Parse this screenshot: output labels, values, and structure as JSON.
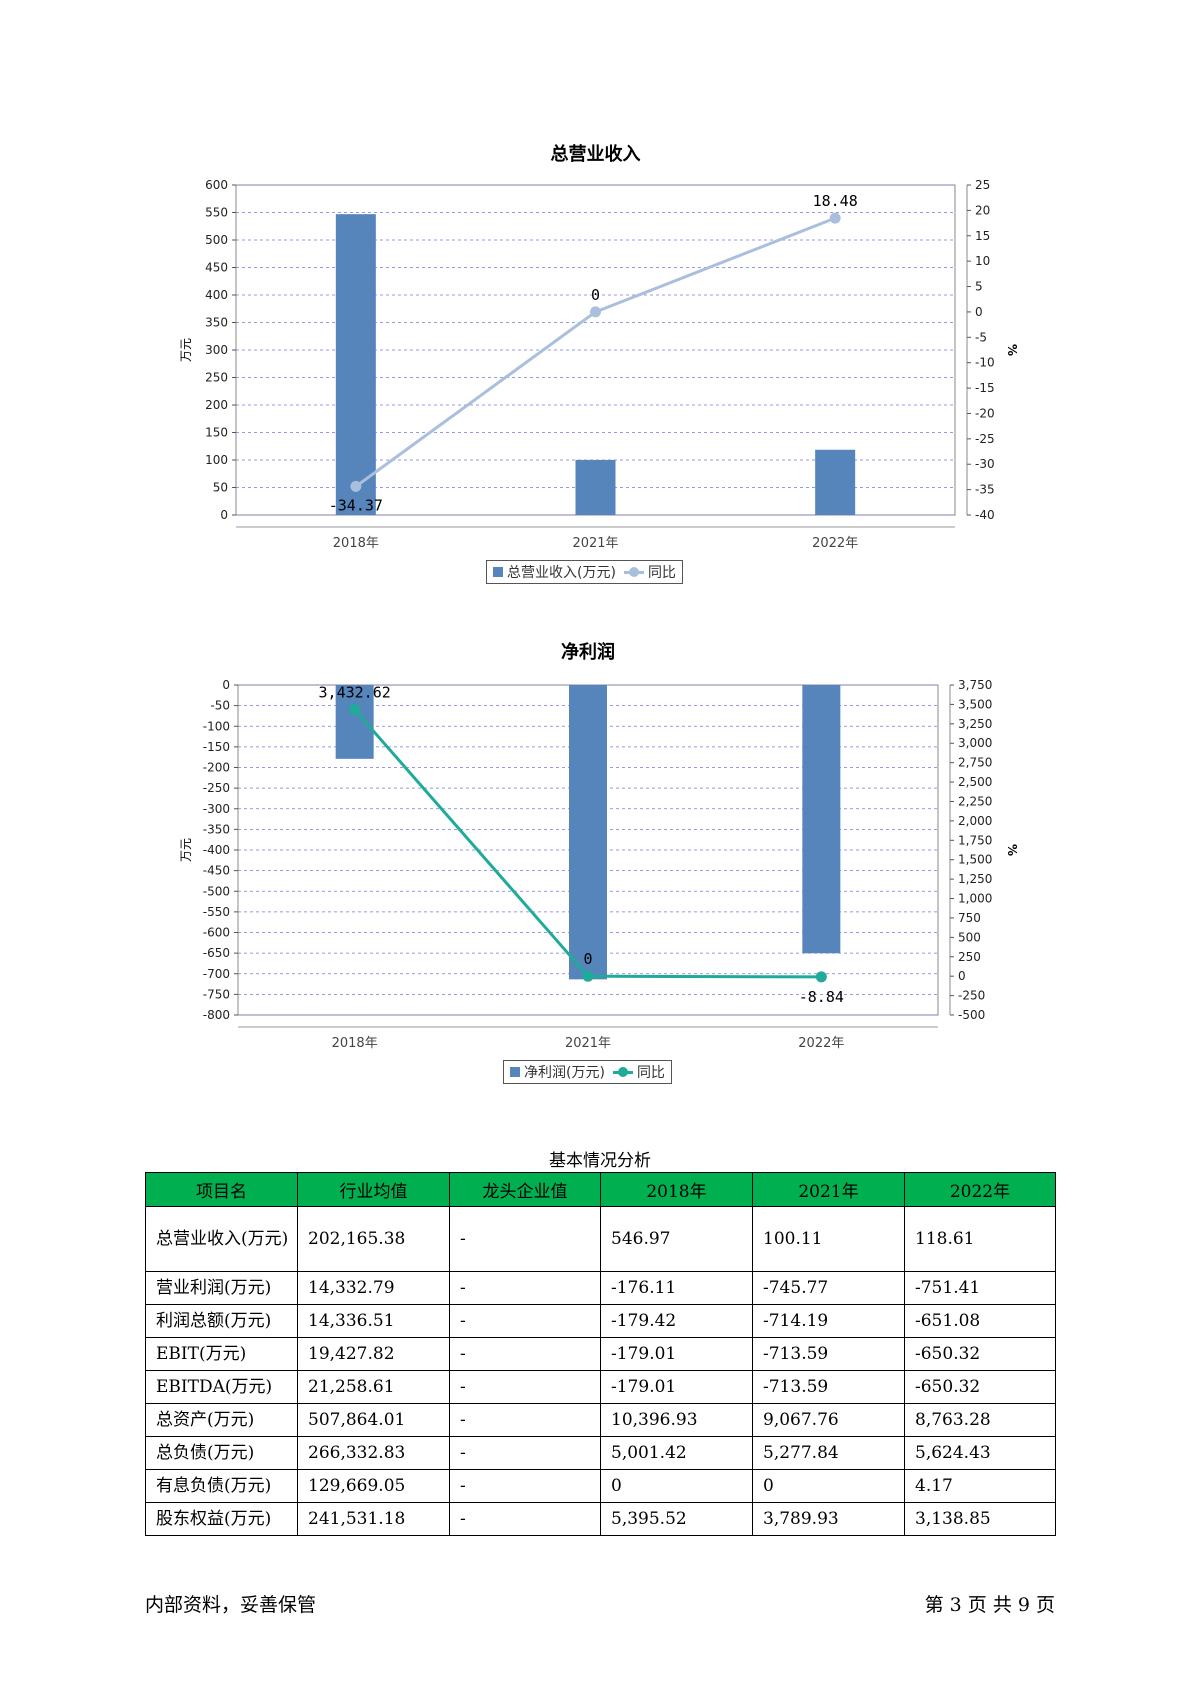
{
  "chart_data": [
    {
      "type": "bar",
      "title": "总营业收入",
      "ylabel": "万元",
      "y2label": "%",
      "categories": [
        "2018年",
        "2021年",
        "2022年"
      ],
      "series": [
        {
          "name": "总营业收入(万元)",
          "type": "bar",
          "axis": "left",
          "values": [
            546.97,
            100.11,
            118.61
          ]
        },
        {
          "name": "同比",
          "type": "line",
          "axis": "right",
          "values": [
            -34.37,
            0,
            18.48
          ]
        }
      ],
      "data_labels": [
        "-34.37",
        "0",
        "18.48"
      ],
      "ylim": [
        0,
        600
      ],
      "y2lim": [
        -40,
        25
      ],
      "grid": true,
      "legend": "bottom-center",
      "colors": {
        "bar": "#5585bb",
        "line": "#aabfdd"
      }
    },
    {
      "type": "bar",
      "title": "净利润",
      "ylabel": "万元",
      "y2label": "%",
      "categories": [
        "2018年",
        "2021年",
        "2022年"
      ],
      "series": [
        {
          "name": "净利润(万元)",
          "type": "bar",
          "axis": "left",
          "values": [
            -179.01,
            -713.59,
            -650.32
          ]
        },
        {
          "name": "同比",
          "type": "line",
          "axis": "right",
          "values": [
            3432.62,
            0,
            -8.84
          ]
        }
      ],
      "data_labels": [
        "3,432.62",
        "0",
        "-8.84"
      ],
      "ylim": [
        -800,
        0
      ],
      "y2lim": [
        -500,
        3750
      ],
      "grid": true,
      "legend": "bottom-center",
      "colors": {
        "bar": "#5585bb",
        "line": "#20aa99"
      }
    }
  ],
  "table": {
    "title": "基本情况分析",
    "headers": [
      "项目名",
      "行业均值",
      "龙头企业值",
      "2018年",
      "2021年",
      "2022年"
    ],
    "rows": [
      [
        "总营业收入(万元)",
        "202,165.38",
        "-",
        "546.97",
        "100.11",
        "118.61"
      ],
      [
        "营业利润(万元)",
        "14,332.79",
        "-",
        "-176.11",
        "-745.77",
        "-751.41"
      ],
      [
        "利润总额(万元)",
        "14,336.51",
        "-",
        "-179.42",
        "-714.19",
        "-651.08"
      ],
      [
        "EBIT(万元)",
        "19,427.82",
        "-",
        "-179.01",
        "-713.59",
        "-650.32"
      ],
      [
        "EBITDA(万元)",
        "21,258.61",
        "-",
        "-179.01",
        "-713.59",
        "-650.32"
      ],
      [
        "总资产(万元)",
        "507,864.01",
        "-",
        "10,396.93",
        "9,067.76",
        "8,763.28"
      ],
      [
        "总负债(万元)",
        "266,332.83",
        "-",
        "5,001.42",
        "5,277.84",
        "5,624.43"
      ],
      [
        "有息负债(万元)",
        "129,669.05",
        "-",
        "0",
        "0",
        "4.17"
      ],
      [
        "股东权益(万元)",
        "241,531.18",
        "-",
        "5,395.52",
        "3,789.93",
        "3,138.85"
      ]
    ]
  },
  "footer": {
    "left": "内部资料，妥善保管",
    "right": "第 3 页  共 9 页"
  }
}
